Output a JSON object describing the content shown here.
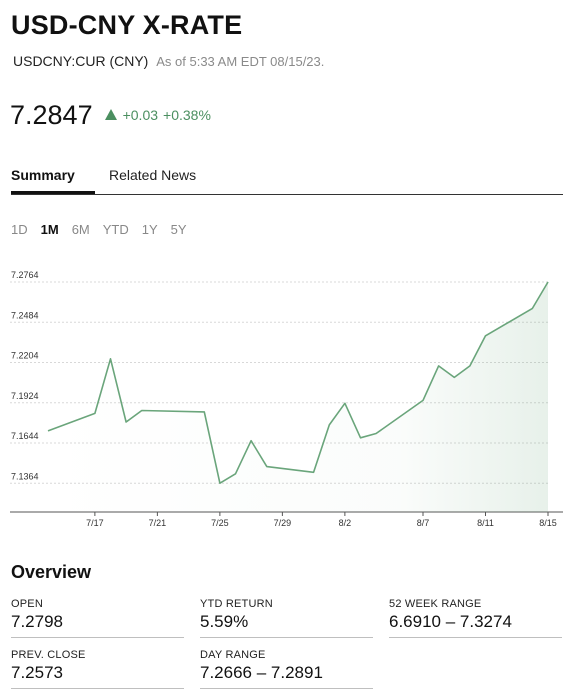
{
  "header": {
    "title": "USD-CNY X-RATE",
    "ticker": "USDCNY:CUR (CNY)",
    "as_of": "As of 5:33 AM EDT 08/15/23."
  },
  "quote": {
    "price": "7.2847",
    "change": "+0.03",
    "change_pct": "+0.38%",
    "direction": "up",
    "up_color": "#4b8f60"
  },
  "tabs": [
    {
      "label": "Summary",
      "active": true
    },
    {
      "label": "Related News",
      "active": false
    }
  ],
  "ranges": [
    {
      "label": "1D",
      "active": false
    },
    {
      "label": "1M",
      "active": true
    },
    {
      "label": "6M",
      "active": false
    },
    {
      "label": "YTD",
      "active": false
    },
    {
      "label": "1Y",
      "active": false
    },
    {
      "label": "5Y",
      "active": false
    }
  ],
  "chart_data": {
    "type": "area",
    "title": "",
    "xlabel": "",
    "ylabel": "",
    "x_ticks": [
      "7/17",
      "7/21",
      "7/25",
      "7/29",
      "8/2",
      "8/7",
      "8/11",
      "8/15"
    ],
    "y_ticks": [
      "7.2764",
      "7.2484",
      "7.2204",
      "7.1924",
      "7.1644",
      "7.1364"
    ],
    "ylim": [
      7.1164,
      7.2764
    ],
    "grid": true,
    "line_color": "#6aa57b",
    "points": [
      {
        "x": "7/14",
        "y": 7.1728
      },
      {
        "x": "7/17",
        "y": 7.185
      },
      {
        "x": "7/18",
        "y": 7.223
      },
      {
        "x": "7/19",
        "y": 7.179
      },
      {
        "x": "7/20",
        "y": 7.187
      },
      {
        "x": "7/24",
        "y": 7.186
      },
      {
        "x": "7/25",
        "y": 7.1364
      },
      {
        "x": "7/26",
        "y": 7.143
      },
      {
        "x": "7/27",
        "y": 7.166
      },
      {
        "x": "7/28",
        "y": 7.148
      },
      {
        "x": "7/31",
        "y": 7.144
      },
      {
        "x": "8/1",
        "y": 7.177
      },
      {
        "x": "8/2",
        "y": 7.192
      },
      {
        "x": "8/3",
        "y": 7.168
      },
      {
        "x": "8/4",
        "y": 7.171
      },
      {
        "x": "8/7",
        "y": 7.194
      },
      {
        "x": "8/8",
        "y": 7.218
      },
      {
        "x": "8/9",
        "y": 7.21
      },
      {
        "x": "8/10",
        "y": 7.218
      },
      {
        "x": "8/11",
        "y": 7.239
      },
      {
        "x": "8/14",
        "y": 7.258
      },
      {
        "x": "8/15",
        "y": 7.2764
      }
    ]
  },
  "overview": {
    "title": "Overview",
    "stats": [
      {
        "label": "OPEN",
        "value": "7.2798"
      },
      {
        "label": "YTD RETURN",
        "value": "5.59%"
      },
      {
        "label": "52 WEEK RANGE",
        "value": "6.6910 – 7.3274"
      },
      {
        "label": "PREV. CLOSE",
        "value": "7.2573"
      },
      {
        "label": "DAY RANGE",
        "value": "7.2666 – 7.2891"
      }
    ]
  }
}
